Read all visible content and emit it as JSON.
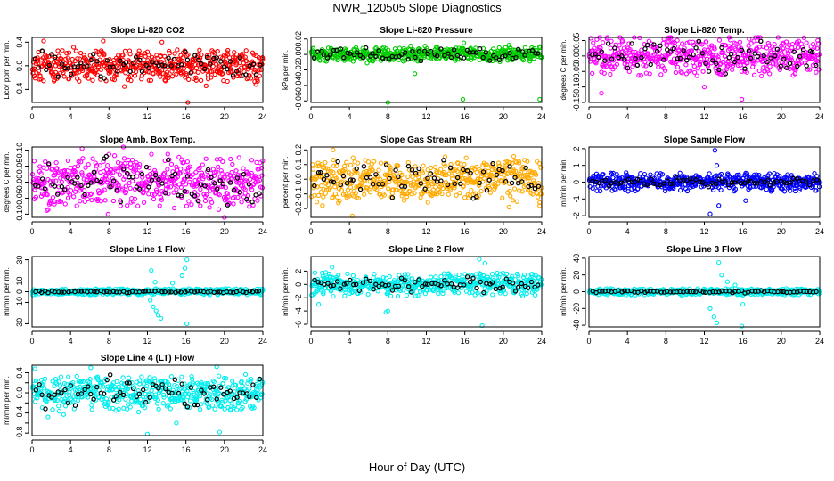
{
  "title": "NWR_120505  Slope Diagnostics",
  "xlabel": "Hour of Day (UTC)",
  "colors": {
    "overlay": "#000000",
    "red": "#ff0000",
    "green": "#00cc00",
    "magenta": "#ff00ff",
    "orange": "#ffaa00",
    "blue": "#0000ff",
    "cyan": "#00eeee"
  },
  "chart_data": [
    {
      "type": "scatter",
      "title": "Slope Li-820 CO2",
      "ylabel": "Licor ppm per min.",
      "color": "#ff0000",
      "xlim": [
        0,
        24
      ],
      "xticks": [
        0,
        4,
        8,
        12,
        16,
        20,
        24
      ],
      "ylim": [
        -0.62,
        0.48
      ],
      "yticks": [
        -0.4,
        0.0,
        0.4
      ],
      "ytick_labels": [
        "-0.4",
        "0.0",
        "0.4"
      ],
      "spread": 0.11,
      "bulk": 0.27,
      "overlay_spread": 0.11,
      "outliers": [
        [
          16.2,
          -0.62
        ],
        [
          18.1,
          -0.34
        ],
        [
          9.6,
          -0.35
        ],
        [
          1.2,
          0.42
        ],
        [
          7.4,
          0.42
        ],
        [
          13.5,
          0.4
        ]
      ]
    },
    {
      "type": "scatter",
      "title": "Slope Li-820 Pressure",
      "ylabel": "kPa per min.",
      "color": "#00cc00",
      "xlim": [
        0,
        24
      ],
      "xticks": [
        0,
        4,
        8,
        12,
        16,
        20,
        24
      ],
      "ylim": [
        -0.062,
        0.022
      ],
      "yticks": [
        -0.06,
        -0.04,
        -0.02,
        0.0,
        0.02
      ],
      "ytick_labels": [
        "-0.06",
        "-0.04",
        "-0.02",
        "0.00",
        "0.02"
      ],
      "spread": 0.004,
      "bulk": 0.009,
      "overlay_spread": 0.004,
      "outliers": [
        [
          8.0,
          -0.062
        ],
        [
          15.8,
          -0.058
        ],
        [
          23.8,
          -0.058
        ],
        [
          10.8,
          -0.025
        ],
        [
          15.9,
          0.015
        ],
        [
          20.6,
          0.012
        ]
      ]
    },
    {
      "type": "scatter",
      "title": "Slope Li-820 Temp.",
      "ylabel": "degrees C per min.",
      "color": "#ff00ff",
      "xlim": [
        0,
        24
      ],
      "xticks": [
        0,
        4,
        8,
        12,
        16,
        20,
        24
      ],
      "ylim": [
        -0.15,
        0.06
      ],
      "yticks": [
        -0.15,
        -0.1,
        -0.05,
        0.0,
        0.05
      ],
      "ytick_labels": [
        "-0.15",
        "-0.10",
        "-0.05",
        "0.00",
        "0.05"
      ],
      "spread": 0.025,
      "bulk": 0.065,
      "overlay_spread": 0.025,
      "outliers": [
        [
          1.1,
          0.06
        ],
        [
          1.3,
          -0.12
        ],
        [
          12.0,
          -0.1
        ],
        [
          15.9,
          -0.14
        ],
        [
          23.8,
          0.05
        ]
      ]
    },
    {
      "type": "scatter",
      "title": "Slope Amb. Box Temp.",
      "ylabel": "degrees C per min.",
      "color": "#ff00ff",
      "xlim": [
        0,
        24
      ],
      "xticks": [
        0,
        4,
        8,
        12,
        16,
        20,
        24
      ],
      "ylim": [
        -0.11,
        0.11
      ],
      "yticks": [
        -0.1,
        -0.05,
        0.0,
        0.05,
        0.1
      ],
      "ytick_labels": [
        "-0.10",
        "-0.05",
        "0.00",
        "0.05",
        "0.10"
      ],
      "spread": 0.035,
      "bulk": 0.075,
      "overlay_spread": 0.035,
      "outliers": [
        [
          5.2,
          0.105
        ],
        [
          9.5,
          0.11
        ],
        [
          20.0,
          -0.11
        ],
        [
          7.9,
          -0.1
        ]
      ]
    },
    {
      "type": "scatter",
      "title": "Slope Gas Stream RH",
      "ylabel": "percent per min.",
      "color": "#ffaa00",
      "xlim": [
        0,
        24
      ],
      "xticks": [
        0,
        4,
        8,
        12,
        16,
        20,
        24
      ],
      "ylim": [
        -0.26,
        0.22
      ],
      "yticks": [
        -0.2,
        -0.1,
        0.0,
        0.1,
        0.2
      ],
      "ytick_labels": [
        "-0.2",
        "-0.1",
        "0.0",
        "0.1",
        "0.2"
      ],
      "spread": 0.06,
      "bulk": 0.13,
      "overlay_spread": 0.06,
      "outliers": [
        [
          4.3,
          -0.25
        ],
        [
          1.2,
          -0.18
        ],
        [
          20.6,
          -0.19
        ],
        [
          23.8,
          -0.16
        ],
        [
          2.3,
          0.2
        ]
      ]
    },
    {
      "type": "scatter",
      "title": "Slope Sample Flow",
      "ylabel": "ml/min per min.",
      "color": "#0000ff",
      "xlim": [
        0,
        24
      ],
      "xticks": [
        0,
        4,
        8,
        12,
        16,
        20,
        24
      ],
      "ylim": [
        -2.1,
        2.1
      ],
      "yticks": [
        -2,
        -1,
        0,
        1,
        2
      ],
      "ytick_labels": [
        "-2",
        "-1",
        "0",
        "1",
        "2"
      ],
      "spread": 0.2,
      "bulk": 0.55,
      "overlay_spread": 0.12,
      "outliers": [
        [
          13.1,
          1.9
        ],
        [
          12.6,
          -1.9
        ],
        [
          13.5,
          -1.4
        ],
        [
          16.3,
          -1.1
        ],
        [
          13.3,
          1.0
        ]
      ]
    },
    {
      "type": "scatter",
      "title": "Slope Line 1 Flow",
      "ylabel": "ml/min per min.",
      "color": "#00eeee",
      "xlim": [
        0,
        24
      ],
      "xticks": [
        0,
        4,
        8,
        12,
        16,
        20,
        24
      ],
      "ylim": [
        -33,
        33
      ],
      "yticks": [
        -30,
        -10,
        0,
        10,
        30
      ],
      "ytick_labels": [
        "-30",
        "-10",
        "0",
        "10",
        "30"
      ],
      "spread": 1.0,
      "bulk": 3.0,
      "overlay_spread": 0.5,
      "outliers": [
        [
          12.3,
          -8
        ],
        [
          12.6,
          -14
        ],
        [
          12.9,
          -18
        ],
        [
          13.1,
          -22
        ],
        [
          13.4,
          -25
        ],
        [
          15.6,
          15
        ],
        [
          15.9,
          22
        ],
        [
          16.1,
          30
        ],
        [
          16.1,
          -30
        ],
        [
          12.4,
          20
        ],
        [
          12.8,
          9
        ],
        [
          14.6,
          8
        ]
      ]
    },
    {
      "type": "scatter",
      "title": "Slope Line 2 Flow",
      "ylabel": "ml/min per min.",
      "color": "#00eeee",
      "xlim": [
        0,
        24
      ],
      "xticks": [
        0,
        4,
        8,
        12,
        16,
        20,
        24
      ],
      "ylim": [
        -6.4,
        4.2
      ],
      "yticks": [
        -6,
        -4,
        -2,
        0,
        2
      ],
      "ytick_labels": [
        "-6",
        "-4",
        "-2",
        "0",
        "2"
      ],
      "spread": 0.6,
      "bulk": 1.8,
      "overlay_spread": 0.5,
      "outliers": [
        [
          17.8,
          -6.2
        ],
        [
          8.0,
          -4.0
        ],
        [
          7.8,
          -4.2
        ],
        [
          17.5,
          3.8
        ],
        [
          18.1,
          3.2
        ],
        [
          0.8,
          -3.0
        ],
        [
          2.2,
          2.6
        ]
      ]
    },
    {
      "type": "scatter",
      "title": "Slope Line 3 Flow",
      "ylabel": "ml/min per min.",
      "color": "#00eeee",
      "xlim": [
        0,
        24
      ],
      "xticks": [
        0,
        4,
        8,
        12,
        16,
        20,
        24
      ],
      "ylim": [
        -42,
        42
      ],
      "yticks": [
        -40,
        -20,
        0,
        20,
        40
      ],
      "ytick_labels": [
        "-40",
        "-20",
        "0",
        "20",
        "40"
      ],
      "spread": 1.2,
      "bulk": 4.0,
      "overlay_spread": 0.7,
      "outliers": [
        [
          12.6,
          -20
        ],
        [
          13.0,
          -30
        ],
        [
          13.3,
          -37
        ],
        [
          15.9,
          -41
        ],
        [
          13.5,
          35
        ],
        [
          13.8,
          20
        ],
        [
          14.4,
          12
        ],
        [
          16.0,
          -15
        ],
        [
          15.2,
          8
        ]
      ]
    },
    {
      "type": "scatter",
      "title": "Slope Line 4 (LT) Flow",
      "ylabel": "ml/min per min.",
      "color": "#00eeee",
      "xlim": [
        0,
        24
      ],
      "xticks": [
        0,
        4,
        8,
        12,
        16,
        20,
        24
      ],
      "ylim": [
        -0.85,
        0.55
      ],
      "yticks": [
        -0.8,
        -0.6,
        -0.4,
        -0.2,
        0.0,
        0.2,
        0.4
      ],
      "ytick_labels": [
        "-0.8",
        "",
        "-0.4",
        "",
        "0.0",
        "",
        "0.4"
      ],
      "spread": 0.15,
      "bulk": 0.34,
      "overlay_spread": 0.14,
      "outliers": [
        [
          12.0,
          -0.82
        ],
        [
          19.5,
          -0.78
        ],
        [
          0.3,
          0.48
        ],
        [
          6.1,
          0.5
        ],
        [
          19.2,
          0.52
        ],
        [
          15.0,
          -0.6
        ]
      ]
    }
  ]
}
